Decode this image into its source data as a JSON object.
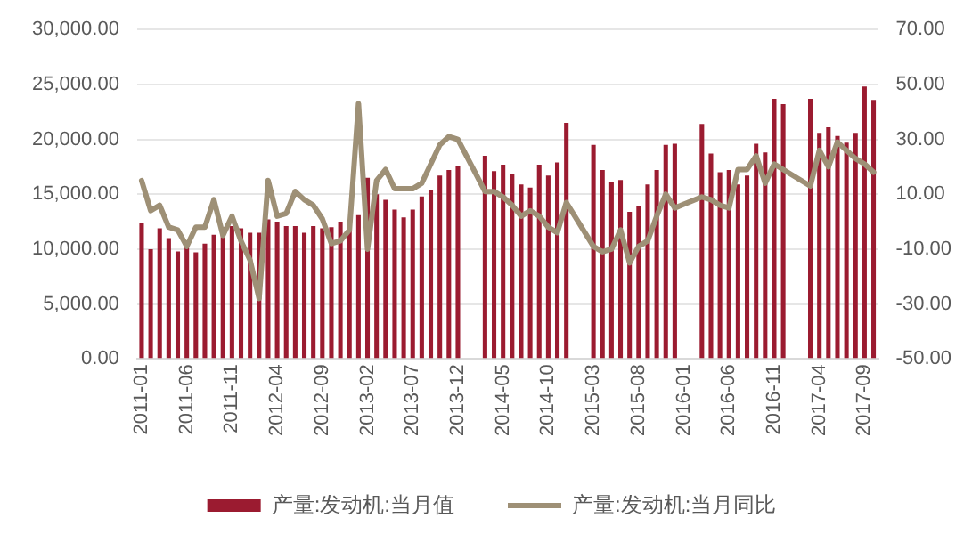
{
  "chart_data": {
    "type": "bar",
    "categories": [
      "2011-01",
      null,
      null,
      null,
      null,
      "2011-06",
      null,
      null,
      null,
      null,
      "2011-11",
      null,
      null,
      null,
      null,
      "2012-04",
      null,
      null,
      null,
      null,
      "2012-09",
      null,
      null,
      null,
      null,
      "2013-02",
      null,
      null,
      null,
      null,
      "2013-07",
      null,
      null,
      null,
      null,
      "2013-12",
      null,
      null,
      null,
      null,
      "2014-05",
      null,
      null,
      null,
      null,
      "2014-10",
      null,
      null,
      null,
      null,
      "2015-03",
      null,
      null,
      null,
      null,
      "2015-08",
      null,
      null,
      null,
      null,
      "2016-01",
      null,
      null,
      null,
      null,
      "2016-06",
      null,
      null,
      null,
      null,
      "2016-11",
      null,
      null,
      null,
      null,
      "2017-04",
      null,
      null,
      null,
      null,
      "2017-09",
      null
    ],
    "series": [
      {
        "name": "产量:发动机:当月值",
        "color": "#9b1b30",
        "values": [
          12400,
          10000,
          11900,
          11000,
          9800,
          10300,
          9700,
          10500,
          11300,
          12000,
          12100,
          11900,
          11500,
          11500,
          12700,
          12500,
          12100,
          12100,
          11500,
          12100,
          11900,
          12000,
          12500,
          12000,
          13100,
          16500,
          15000,
          14500,
          13600,
          12900,
          13600,
          14800,
          15400,
          16700,
          17200,
          17600,
          null,
          null,
          18500,
          17100,
          17700,
          16800,
          15900,
          15600,
          17700,
          16700,
          17900,
          21500,
          null,
          null,
          19500,
          17200,
          16100,
          16300,
          13400,
          13900,
          15900,
          17200,
          19500,
          19600,
          null,
          null,
          21400,
          18700,
          17000,
          17200,
          15900,
          16700,
          19600,
          18800,
          23700,
          23200,
          null,
          null,
          23700,
          20600,
          21100,
          20300,
          19700,
          20600,
          24800,
          23600
        ]
      },
      {
        "name": "产量:发动机:当月同比",
        "type": "line",
        "axis": "y2",
        "color": "#9e9076",
        "values": [
          15,
          4,
          6,
          -2,
          -3,
          -9,
          -2,
          -2,
          8,
          -5,
          2,
          -7,
          -14,
          -28,
          15,
          2,
          3,
          11,
          8,
          6,
          1,
          -8,
          -7,
          -3,
          43,
          -10,
          15,
          19,
          12,
          12,
          12,
          14,
          21,
          28,
          31,
          30,
          null,
          null,
          11,
          11,
          9,
          6,
          2,
          4,
          2,
          -2,
          -4,
          7,
          null,
          null,
          -9,
          -11,
          -10,
          -3,
          -15,
          -9,
          -7,
          2,
          10,
          5,
          null,
          null,
          9,
          8,
          6,
          5,
          19,
          19,
          24,
          14,
          21,
          19,
          null,
          null,
          13,
          26,
          20,
          29,
          26,
          23,
          21,
          18
        ]
      }
    ],
    "ylim": [
      0,
      30000
    ],
    "yticks": [
      {
        "value": 0,
        "label": "0.00"
      },
      {
        "value": 5000,
        "label": "5,000.00"
      },
      {
        "value": 10000,
        "label": "10,000.00"
      },
      {
        "value": 15000,
        "label": "15,000.00"
      },
      {
        "value": 20000,
        "label": "20,000.00"
      },
      {
        "value": 25000,
        "label": "25,000.00"
      },
      {
        "value": 30000,
        "label": "30,000.00"
      }
    ],
    "y2lim": [
      -50,
      70
    ],
    "y2ticks": [
      {
        "value": -50,
        "label": "-50.00"
      },
      {
        "value": -30,
        "label": "-30.00"
      },
      {
        "value": -10,
        "label": "-10.00"
      },
      {
        "value": 10,
        "label": "10.00"
      },
      {
        "value": 30,
        "label": "30.00"
      },
      {
        "value": 50,
        "label": "50.00"
      },
      {
        "value": 70,
        "label": "70.00"
      }
    ],
    "grid": "y",
    "legend": "bottom"
  }
}
